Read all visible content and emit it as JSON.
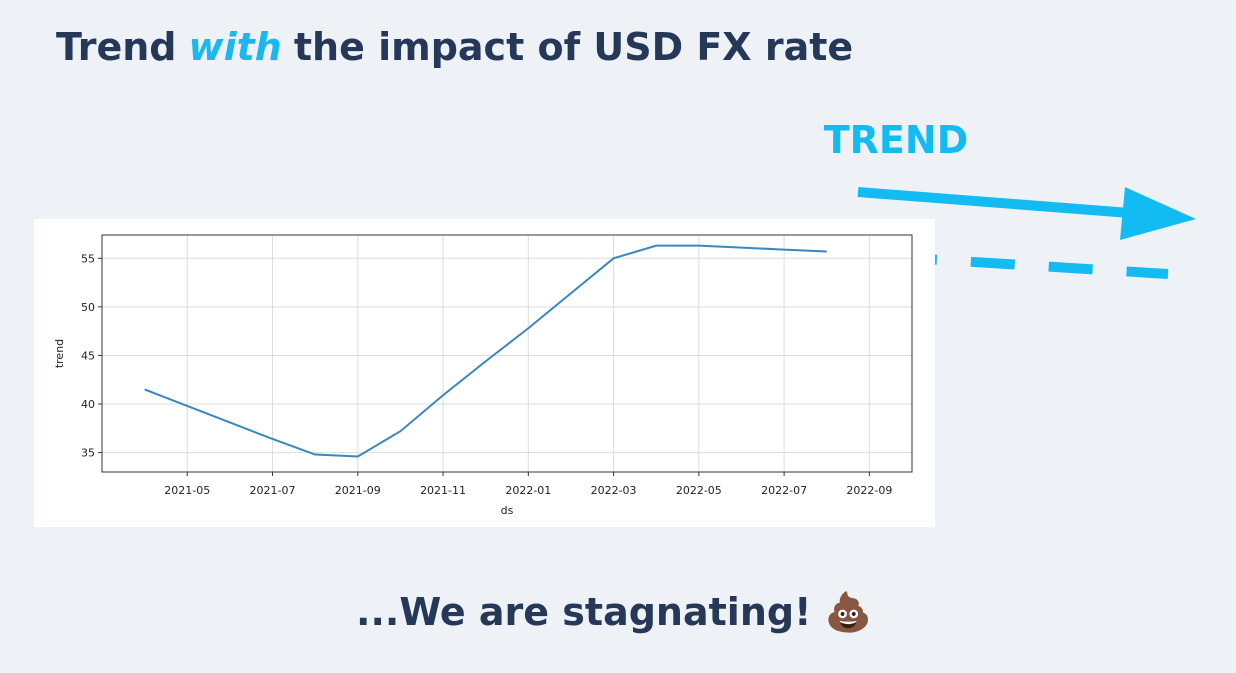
{
  "title": [
    "Trend",
    "with",
    "the impact of USD FX rate"
  ],
  "annotation": "TREND",
  "caption": "...We are stagnating! 💩",
  "chart_data": {
    "type": "line",
    "xlabel": "ds",
    "ylabel": "trend",
    "x": [
      "2021-04",
      "2021-05",
      "2021-06",
      "2021-07",
      "2021-08",
      "2021-09",
      "2021-10",
      "2021-11",
      "2021-12",
      "2022-01",
      "2022-02",
      "2022-03",
      "2022-04",
      "2022-05",
      "2022-06",
      "2022-07",
      "2022-08"
    ],
    "series": [
      {
        "name": "trend",
        "color": "#3a87c0",
        "values": [
          41.5,
          39.8,
          38.1,
          36.4,
          34.8,
          34.6,
          37.2,
          40.9,
          44.4,
          47.8,
          51.4,
          55.0,
          56.3,
          56.3,
          56.1,
          55.9,
          55.7
        ]
      }
    ],
    "xlim": [
      "2021-03",
      "2022-10"
    ],
    "xticks": [
      "2021-05",
      "2021-07",
      "2021-09",
      "2021-11",
      "2022-01",
      "2022-03",
      "2022-05",
      "2022-07",
      "2022-09"
    ],
    "ylim": [
      33.0,
      57.4
    ],
    "yticks": [
      35,
      40,
      45,
      50,
      55
    ],
    "grid": true
  }
}
